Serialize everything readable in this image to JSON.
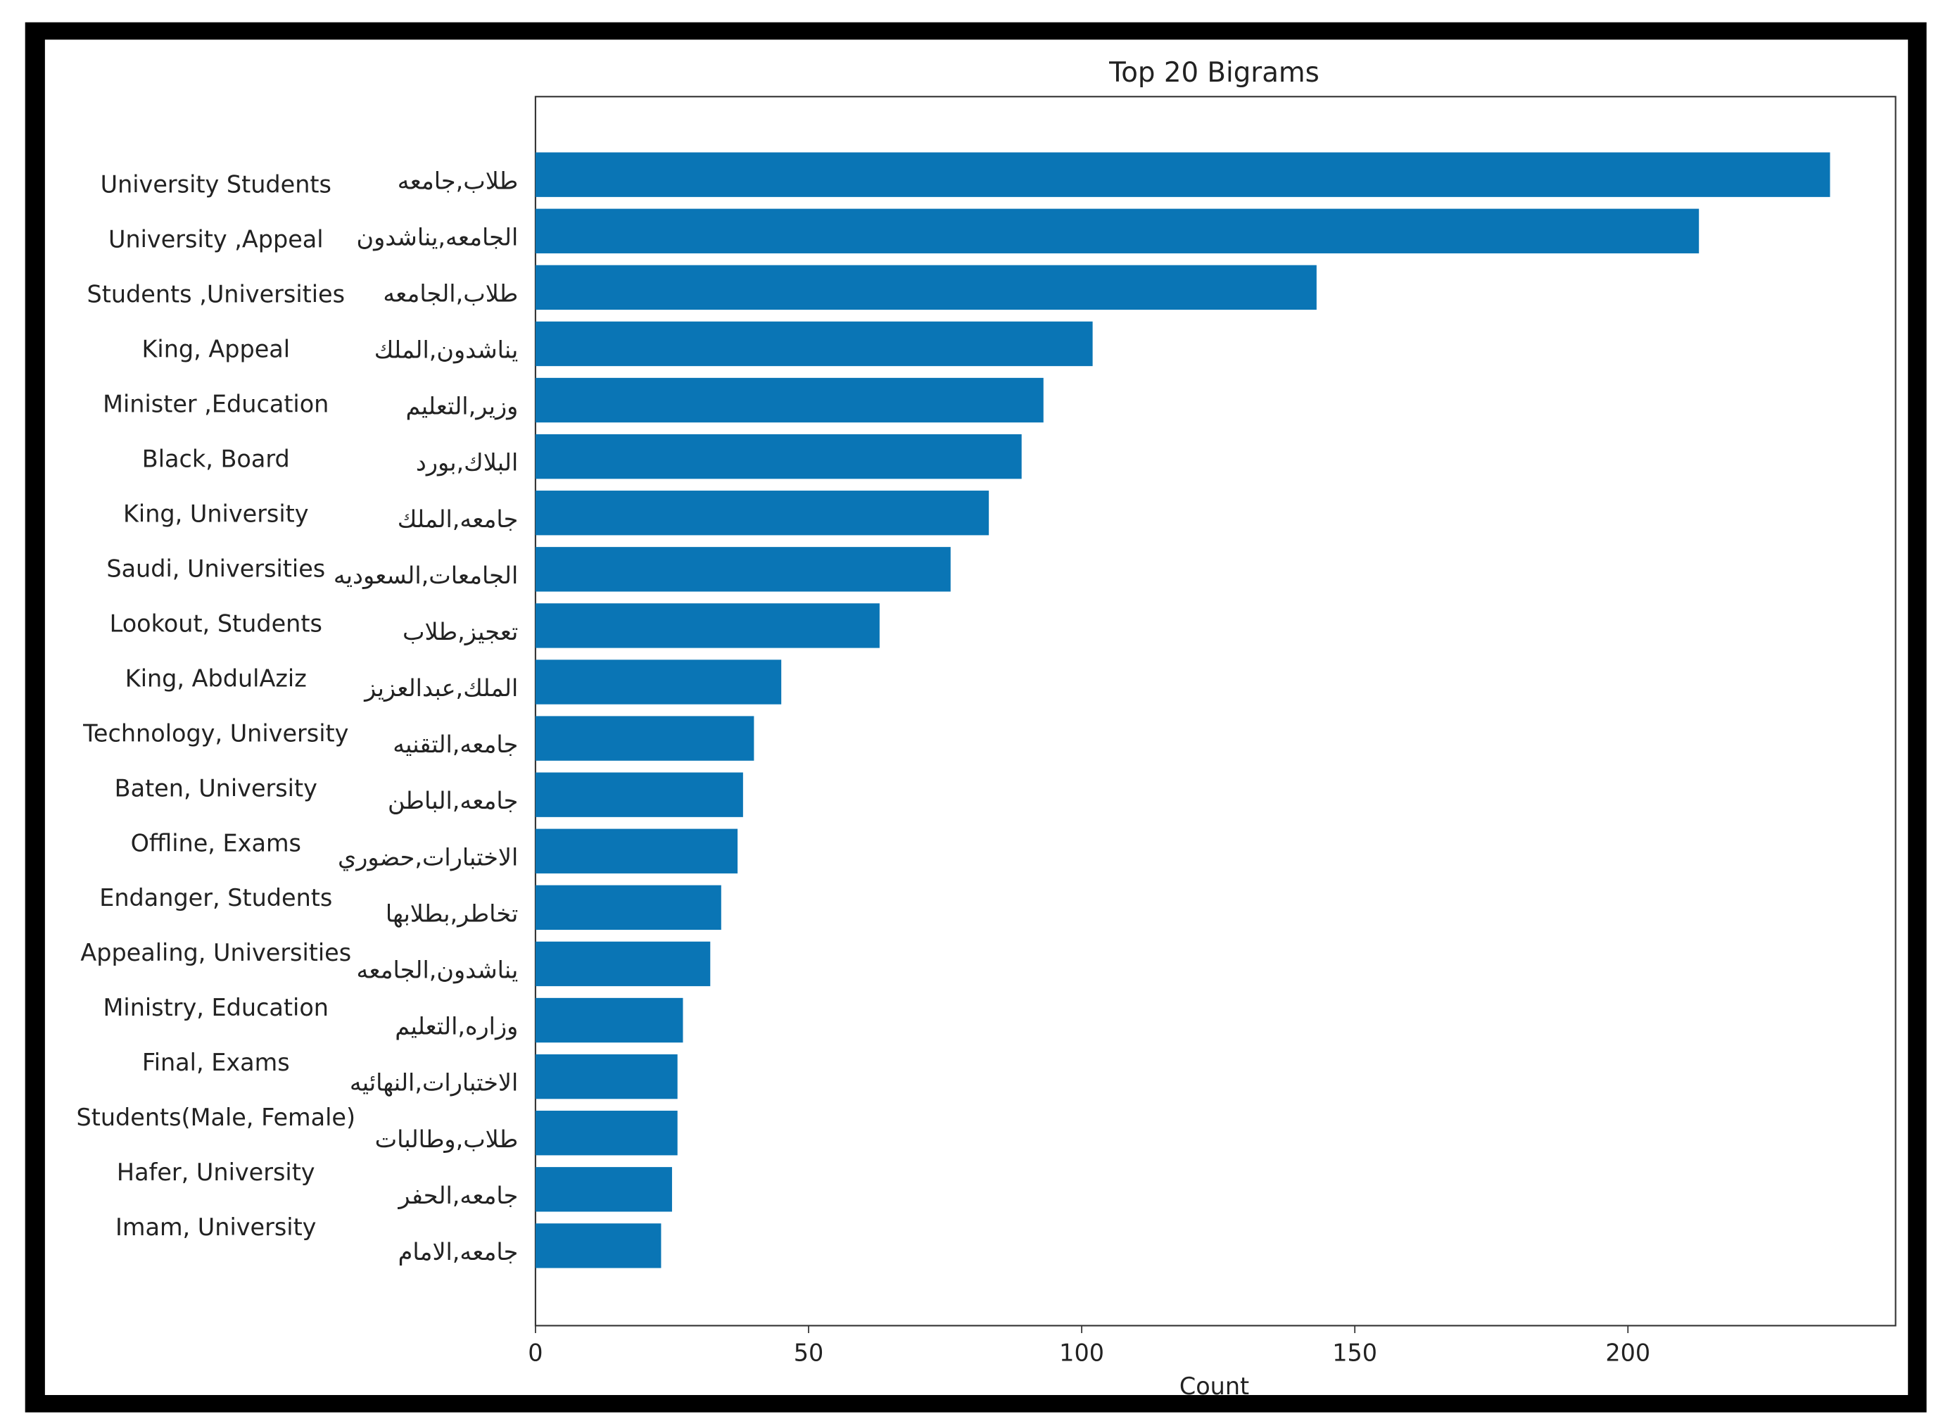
{
  "chart_data": {
    "type": "barh",
    "title": "Top 20 Bigrams",
    "x_label": "Count",
    "categories": [
      "طلاب,جامعه",
      "الجامعه,يناشدون",
      "طلاب,الجامعه",
      "يناشدون,الملك",
      "وزير,التعليم",
      "البلاك,بورد",
      "جامعه,الملك",
      "الجامعات,السعوديه",
      "تعجيز,طلاب",
      "الملك,عبدالعزيز",
      "جامعه,التقنيه",
      "جامعه,الباطن",
      "الاختبارات,حضوري",
      "تخاطر,بطلابها",
      "يناشدون,الجامعه",
      "وزاره,التعليم",
      "الاختبارات,النهائيه",
      "طلاب,وطالبات",
      "جامعه,الحفر",
      "جامعه,الامام"
    ],
    "translations": [
      "University Students",
      "University ,Appeal",
      "Students ,Universities",
      "King, Appeal",
      "Minister ,Education",
      "Black, Board",
      "King, University",
      "Saudi, Universities",
      "Lookout, Students",
      "King, AbdulAziz",
      "Technology, University",
      "Baten, University",
      "Offline, Exams",
      "Endanger, Students",
      "Appealing, Universities",
      "Ministry, Education",
      "Final, Exams",
      "Students(Male, Female)",
      "Hafer, University",
      "Imam, University"
    ],
    "values": [
      237,
      213,
      143,
      102,
      93,
      89,
      83,
      76,
      63,
      45,
      40,
      38,
      37,
      34,
      32,
      27,
      26,
      26,
      25,
      23
    ],
    "color": "#0a75b5",
    "xlim": [
      0,
      249
    ],
    "xticks": [
      0,
      50,
      100,
      150,
      200
    ]
  }
}
